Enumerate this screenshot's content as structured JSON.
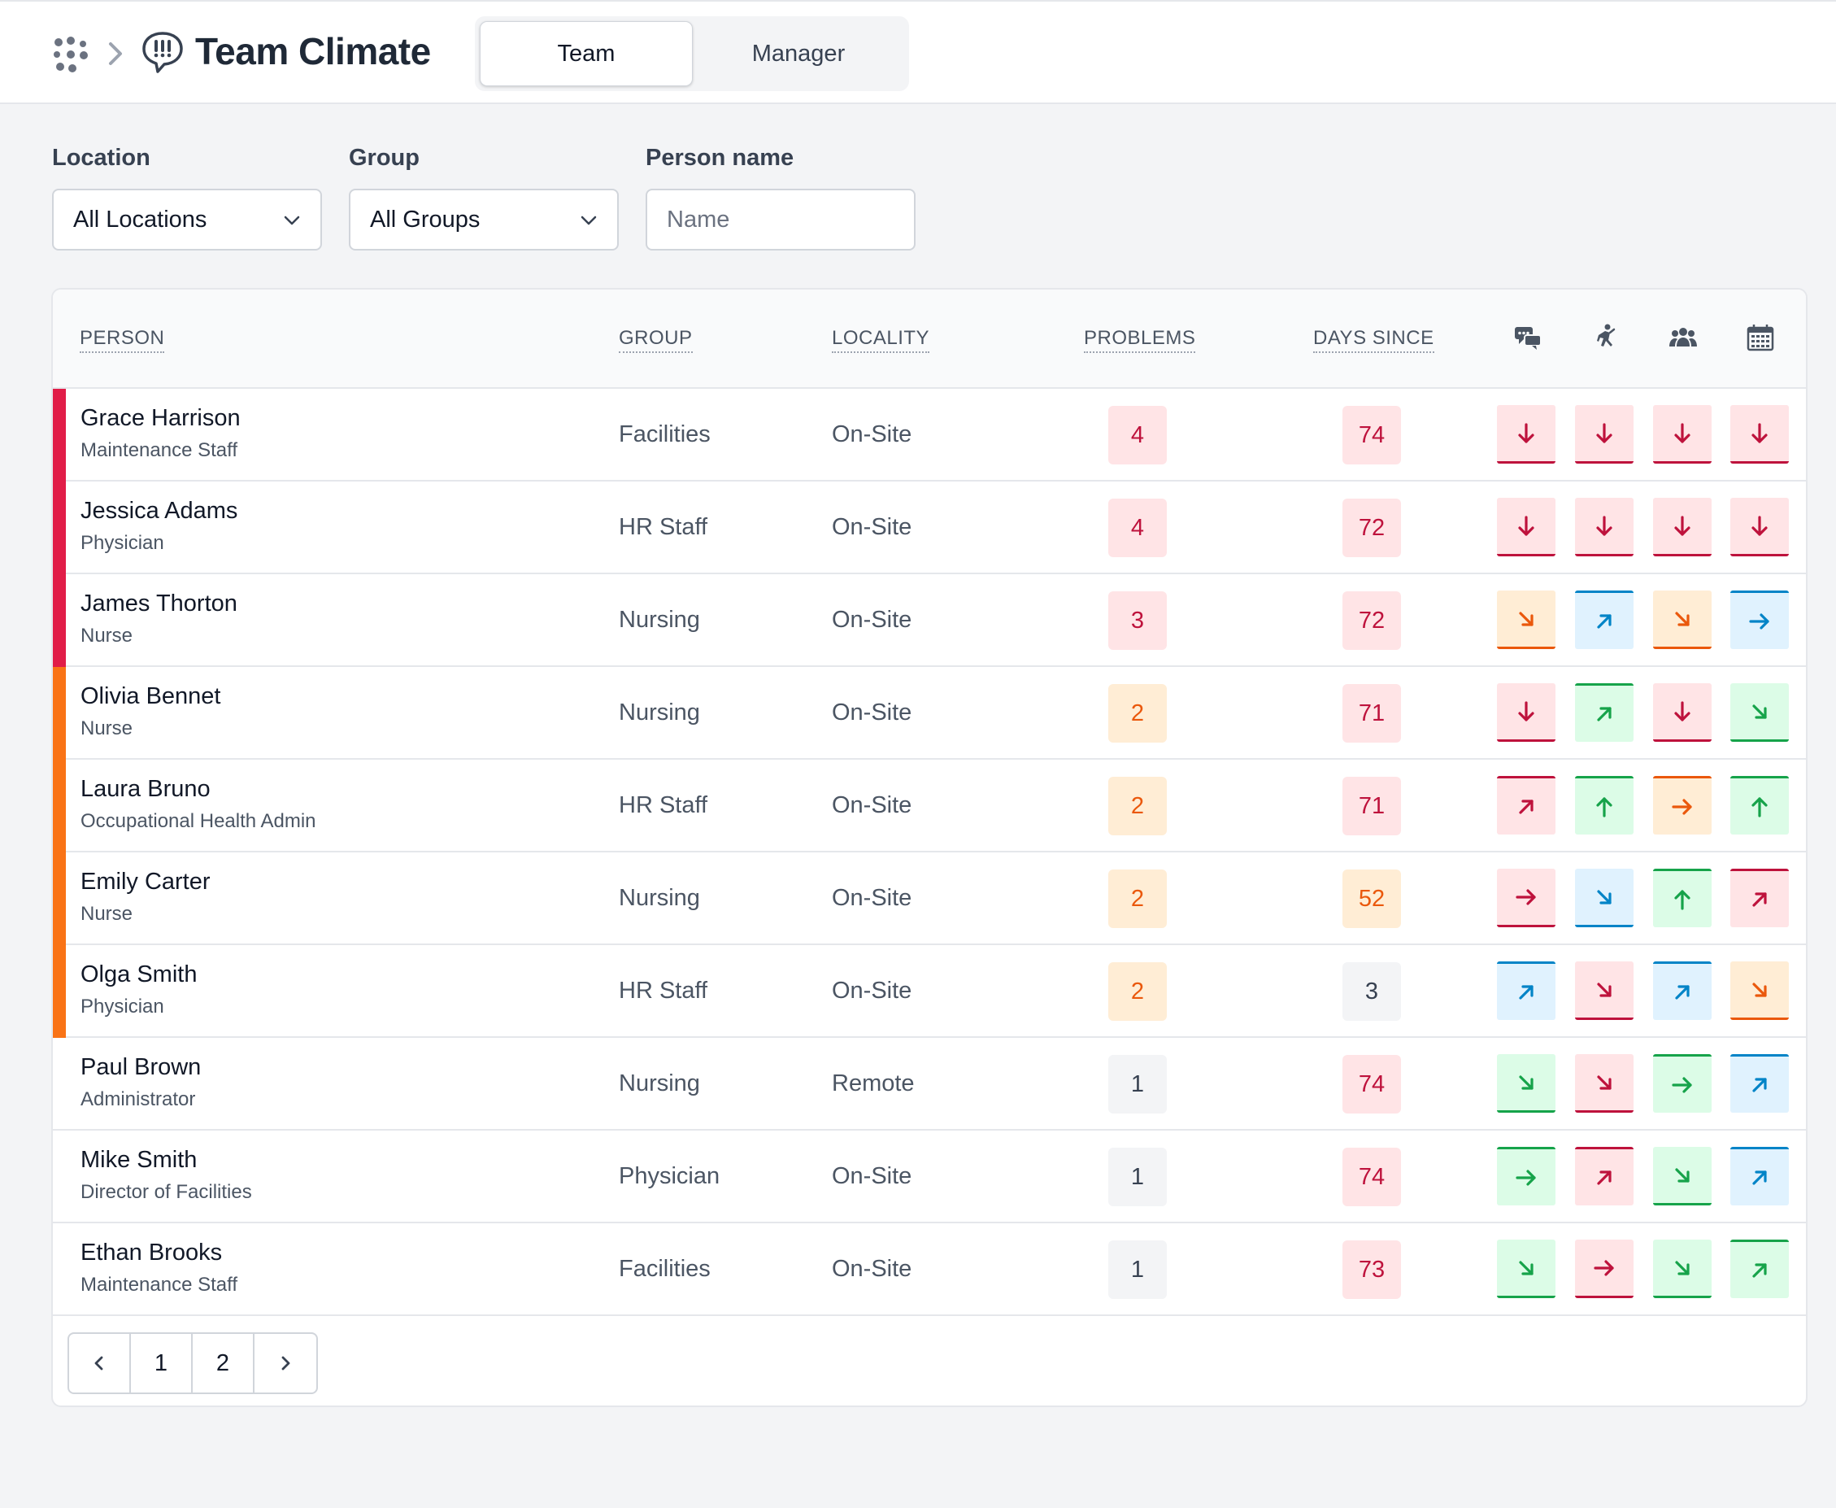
{
  "header": {
    "title": "Team Climate",
    "tabs": [
      {
        "label": "Team",
        "active": true
      },
      {
        "label": "Manager",
        "active": false
      }
    ],
    "icons": {
      "app": "grid-dots-icon",
      "separator": "chevron-right-icon",
      "module": "speech-bubble-icon"
    }
  },
  "filters": {
    "location": {
      "label": "Location",
      "value": "All Locations"
    },
    "group": {
      "label": "Group",
      "value": "All Groups"
    },
    "person": {
      "label": "Person name",
      "placeholder": "Name",
      "value": ""
    }
  },
  "table": {
    "columns": {
      "person": "PERSON",
      "group": "GROUP",
      "locality": "LOCALITY",
      "problems": "PROBLEMS",
      "days_since": "DAYS SINCE"
    },
    "metric_icons": [
      "chat-bubbles-icon",
      "running-person-icon",
      "people-group-icon",
      "calendar-icon"
    ],
    "rows": [
      {
        "name": "Grace Harrison",
        "role": "Maintenance Staff",
        "group": "Facilities",
        "locality": "On-Site",
        "problems": "4",
        "days_since": "74",
        "severity": "red",
        "problems_tone": "red",
        "days_tone": "red",
        "trends": [
          {
            "dir": "down",
            "tone": "red"
          },
          {
            "dir": "down",
            "tone": "red"
          },
          {
            "dir": "down",
            "tone": "red"
          },
          {
            "dir": "down",
            "tone": "red"
          }
        ]
      },
      {
        "name": "Jessica Adams",
        "role": "Physician",
        "group": "HR Staff",
        "locality": "On-Site",
        "problems": "4",
        "days_since": "72",
        "severity": "red",
        "problems_tone": "red",
        "days_tone": "red",
        "trends": [
          {
            "dir": "down",
            "tone": "red"
          },
          {
            "dir": "down",
            "tone": "red"
          },
          {
            "dir": "down",
            "tone": "red"
          },
          {
            "dir": "down",
            "tone": "red"
          }
        ]
      },
      {
        "name": "James Thorton",
        "role": "Nurse",
        "group": "Nursing",
        "locality": "On-Site",
        "problems": "3",
        "days_since": "72",
        "severity": "red",
        "problems_tone": "red",
        "days_tone": "red",
        "trends": [
          {
            "dir": "down-right",
            "tone": "orange"
          },
          {
            "dir": "up-right",
            "tone": "blue"
          },
          {
            "dir": "down-right",
            "tone": "orange"
          },
          {
            "dir": "right",
            "tone": "blue"
          }
        ]
      },
      {
        "name": "Olivia Bennet",
        "role": "Nurse",
        "group": "Nursing",
        "locality": "On-Site",
        "problems": "2",
        "days_since": "71",
        "severity": "orange",
        "problems_tone": "orange",
        "days_tone": "red",
        "trends": [
          {
            "dir": "down",
            "tone": "red"
          },
          {
            "dir": "up-right",
            "tone": "green"
          },
          {
            "dir": "down",
            "tone": "red"
          },
          {
            "dir": "down-right",
            "tone": "green"
          }
        ]
      },
      {
        "name": "Laura Bruno",
        "role": "Occupational Health Admin",
        "group": "HR Staff",
        "locality": "On-Site",
        "problems": "2",
        "days_since": "71",
        "severity": "orange",
        "problems_tone": "orange",
        "days_tone": "red",
        "trends": [
          {
            "dir": "up-right",
            "tone": "red"
          },
          {
            "dir": "up",
            "tone": "green"
          },
          {
            "dir": "right",
            "tone": "orange"
          },
          {
            "dir": "up",
            "tone": "green"
          }
        ]
      },
      {
        "name": "Emily Carter",
        "role": "Nurse",
        "group": "Nursing",
        "locality": "On-Site",
        "problems": "2",
        "days_since": "52",
        "severity": "orange",
        "problems_tone": "orange",
        "days_tone": "orange",
        "trends": [
          {
            "dir": "right",
            "tone": "red"
          },
          {
            "dir": "down-right",
            "tone": "blue"
          },
          {
            "dir": "up",
            "tone": "green"
          },
          {
            "dir": "up-right",
            "tone": "red"
          }
        ]
      },
      {
        "name": "Olga Smith",
        "role": "Physician",
        "group": "HR Staff",
        "locality": "On-Site",
        "problems": "2",
        "days_since": "3",
        "severity": "orange",
        "problems_tone": "orange",
        "days_tone": "gray",
        "trends": [
          {
            "dir": "up-right",
            "tone": "blue"
          },
          {
            "dir": "down-right",
            "tone": "red"
          },
          {
            "dir": "up-right",
            "tone": "blue"
          },
          {
            "dir": "down-right",
            "tone": "orange"
          }
        ]
      },
      {
        "name": "Paul Brown",
        "role": "Administrator",
        "group": "Nursing",
        "locality": "Remote",
        "problems": "1",
        "days_since": "74",
        "severity": "none",
        "problems_tone": "gray",
        "days_tone": "red",
        "trends": [
          {
            "dir": "down-right",
            "tone": "green"
          },
          {
            "dir": "down-right",
            "tone": "red"
          },
          {
            "dir": "right",
            "tone": "green"
          },
          {
            "dir": "up-right",
            "tone": "blue"
          }
        ]
      },
      {
        "name": "Mike Smith",
        "role": "Director of Facilities",
        "group": "Physician",
        "locality": "On-Site",
        "problems": "1",
        "days_since": "74",
        "severity": "none",
        "problems_tone": "gray",
        "days_tone": "red",
        "trends": [
          {
            "dir": "right",
            "tone": "green"
          },
          {
            "dir": "up-right",
            "tone": "red"
          },
          {
            "dir": "down-right",
            "tone": "green"
          },
          {
            "dir": "up-right",
            "tone": "blue"
          }
        ]
      },
      {
        "name": "Ethan Brooks",
        "role": "Maintenance Staff",
        "group": "Facilities",
        "locality": "On-Site",
        "problems": "1",
        "days_since": "73",
        "severity": "none",
        "problems_tone": "gray",
        "days_tone": "red",
        "trends": [
          {
            "dir": "down-right",
            "tone": "green"
          },
          {
            "dir": "right",
            "tone": "red"
          },
          {
            "dir": "down-right",
            "tone": "green"
          },
          {
            "dir": "up-right",
            "tone": "green"
          }
        ]
      }
    ]
  },
  "pagination": {
    "pages": [
      "1",
      "2"
    ],
    "current": "1"
  },
  "colors": {
    "red": {
      "fg": "#be123c",
      "bg": "#ffe4e6",
      "stripe": "#e11d48"
    },
    "orange": {
      "fg": "#ea580c",
      "bg": "#ffedd5",
      "stripe": "#f97316"
    },
    "blue": {
      "fg": "#0284c7",
      "bg": "#e0f2fe"
    },
    "green": {
      "fg": "#16a34a",
      "bg": "#dcfce7"
    },
    "gray": {
      "fg": "#374151",
      "bg": "#f3f4f6"
    }
  }
}
